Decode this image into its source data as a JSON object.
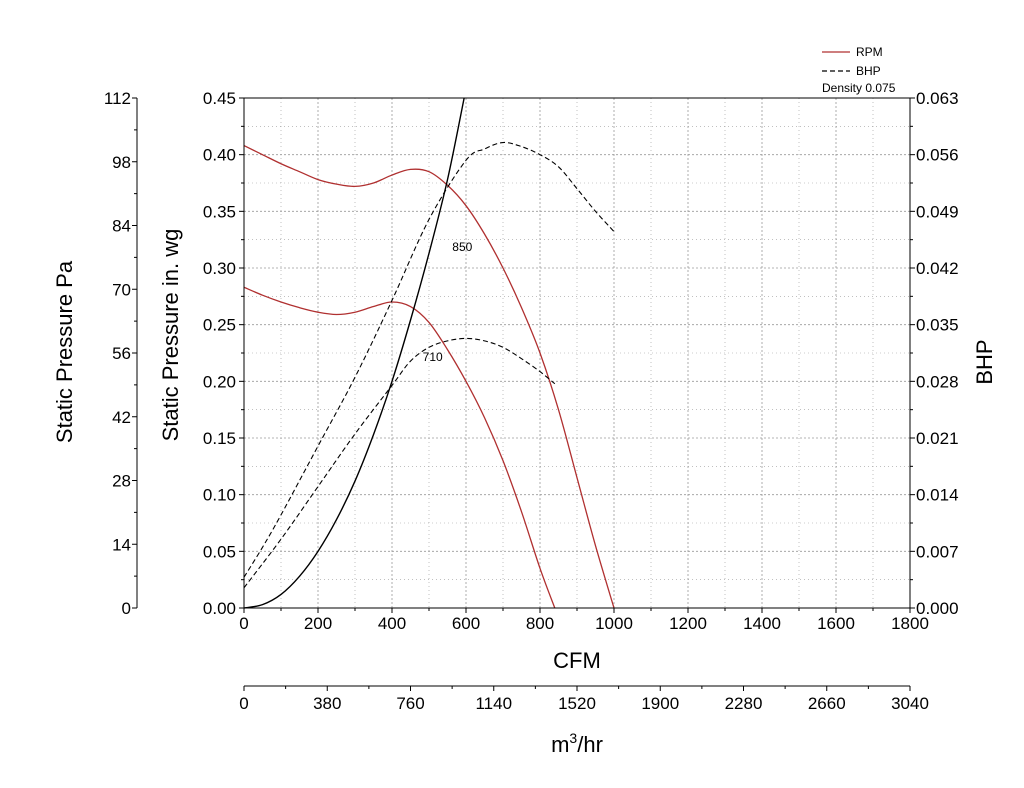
{
  "chart_data": {
    "type": "line",
    "grid": true,
    "legend_position": "top-right",
    "legend": {
      "rpm_label": "RPM",
      "bhp_label": "BHP",
      "density_label": "Density 0.075"
    },
    "colors": {
      "rpm": "#b03030",
      "bhp": "#000000",
      "system": "#000000",
      "grid": "#9a9a9a"
    },
    "x_axis": {
      "label": "CFM",
      "range": [
        0,
        1800
      ],
      "ticks": [
        "0",
        "200",
        "400",
        "600",
        "800",
        "1000",
        "1200",
        "1400",
        "1600",
        "1800"
      ]
    },
    "x2_axis": {
      "label_base": "m",
      "label_sup": "3",
      "label_tail": "/hr",
      "range": [
        0,
        3040
      ],
      "ticks": [
        "0",
        "380",
        "760",
        "1140",
        "1520",
        "1900",
        "2280",
        "2660",
        "3040"
      ]
    },
    "y_axis": {
      "label": "Static Pressure in. wg",
      "range": [
        0,
        0.45
      ],
      "ticks": [
        "0.00",
        "0.05",
        "0.10",
        "0.15",
        "0.20",
        "0.25",
        "0.30",
        "0.35",
        "0.40",
        "0.45"
      ]
    },
    "y_pa_axis": {
      "label": "Static Pressure Pa",
      "range": [
        0,
        112
      ],
      "ticks": [
        "0",
        "14",
        "28",
        "42",
        "56",
        "70",
        "84",
        "98",
        "112"
      ]
    },
    "y_bhp_axis": {
      "label": "BHP",
      "range": [
        0,
        0.063
      ],
      "ticks": [
        "0.000",
        "0.007",
        "0.014",
        "0.021",
        "0.028",
        "0.035",
        "0.042",
        "0.049",
        "0.056",
        "0.063"
      ]
    },
    "series": [
      {
        "kind": "rpm",
        "curve_label": "850",
        "label_at": [
          590,
          0.315
        ],
        "x": [
          0,
          50,
          100,
          150,
          200,
          250,
          300,
          350,
          400,
          450,
          500,
          550,
          600,
          650,
          700,
          750,
          800,
          850,
          900,
          950,
          1000
        ],
        "y": [
          0.408,
          0.4,
          0.392,
          0.385,
          0.378,
          0.374,
          0.372,
          0.375,
          0.382,
          0.387,
          0.385,
          0.373,
          0.355,
          0.33,
          0.3,
          0.265,
          0.225,
          0.175,
          0.115,
          0.055,
          0.0
        ]
      },
      {
        "kind": "rpm",
        "curve_label": "710",
        "label_at": [
          510,
          0.218
        ],
        "x": [
          0,
          50,
          100,
          150,
          200,
          250,
          300,
          350,
          400,
          450,
          500,
          550,
          600,
          650,
          700,
          750,
          800,
          840
        ],
        "y": [
          0.283,
          0.276,
          0.27,
          0.265,
          0.261,
          0.259,
          0.261,
          0.266,
          0.27,
          0.266,
          0.252,
          0.228,
          0.2,
          0.168,
          0.13,
          0.085,
          0.035,
          0.0
        ]
      },
      {
        "kind": "bhp",
        "x": [
          0,
          50,
          100,
          200,
          300,
          400,
          500,
          600,
          650,
          700,
          750,
          800,
          850,
          900,
          950,
          1000
        ],
        "y": [
          0.0038,
          0.0075,
          0.0115,
          0.02,
          0.0285,
          0.038,
          0.048,
          0.0553,
          0.0567,
          0.0575,
          0.057,
          0.056,
          0.0545,
          0.0518,
          0.049,
          0.0465
        ]
      },
      {
        "kind": "bhp",
        "x": [
          0,
          100,
          200,
          300,
          400,
          450,
          500,
          550,
          600,
          650,
          700,
          750,
          800,
          840
        ],
        "y": [
          0.0025,
          0.0085,
          0.015,
          0.0215,
          0.0275,
          0.0305,
          0.0322,
          0.033,
          0.0333,
          0.033,
          0.0322,
          0.0308,
          0.0292,
          0.0277
        ]
      },
      {
        "kind": "system",
        "x": [
          0,
          50,
          100,
          150,
          200,
          250,
          300,
          350,
          400,
          450,
          500,
          550,
          595
        ],
        "y": [
          0.0,
          0.003,
          0.012,
          0.028,
          0.05,
          0.078,
          0.112,
          0.153,
          0.2,
          0.254,
          0.313,
          0.378,
          0.45
        ]
      }
    ]
  }
}
